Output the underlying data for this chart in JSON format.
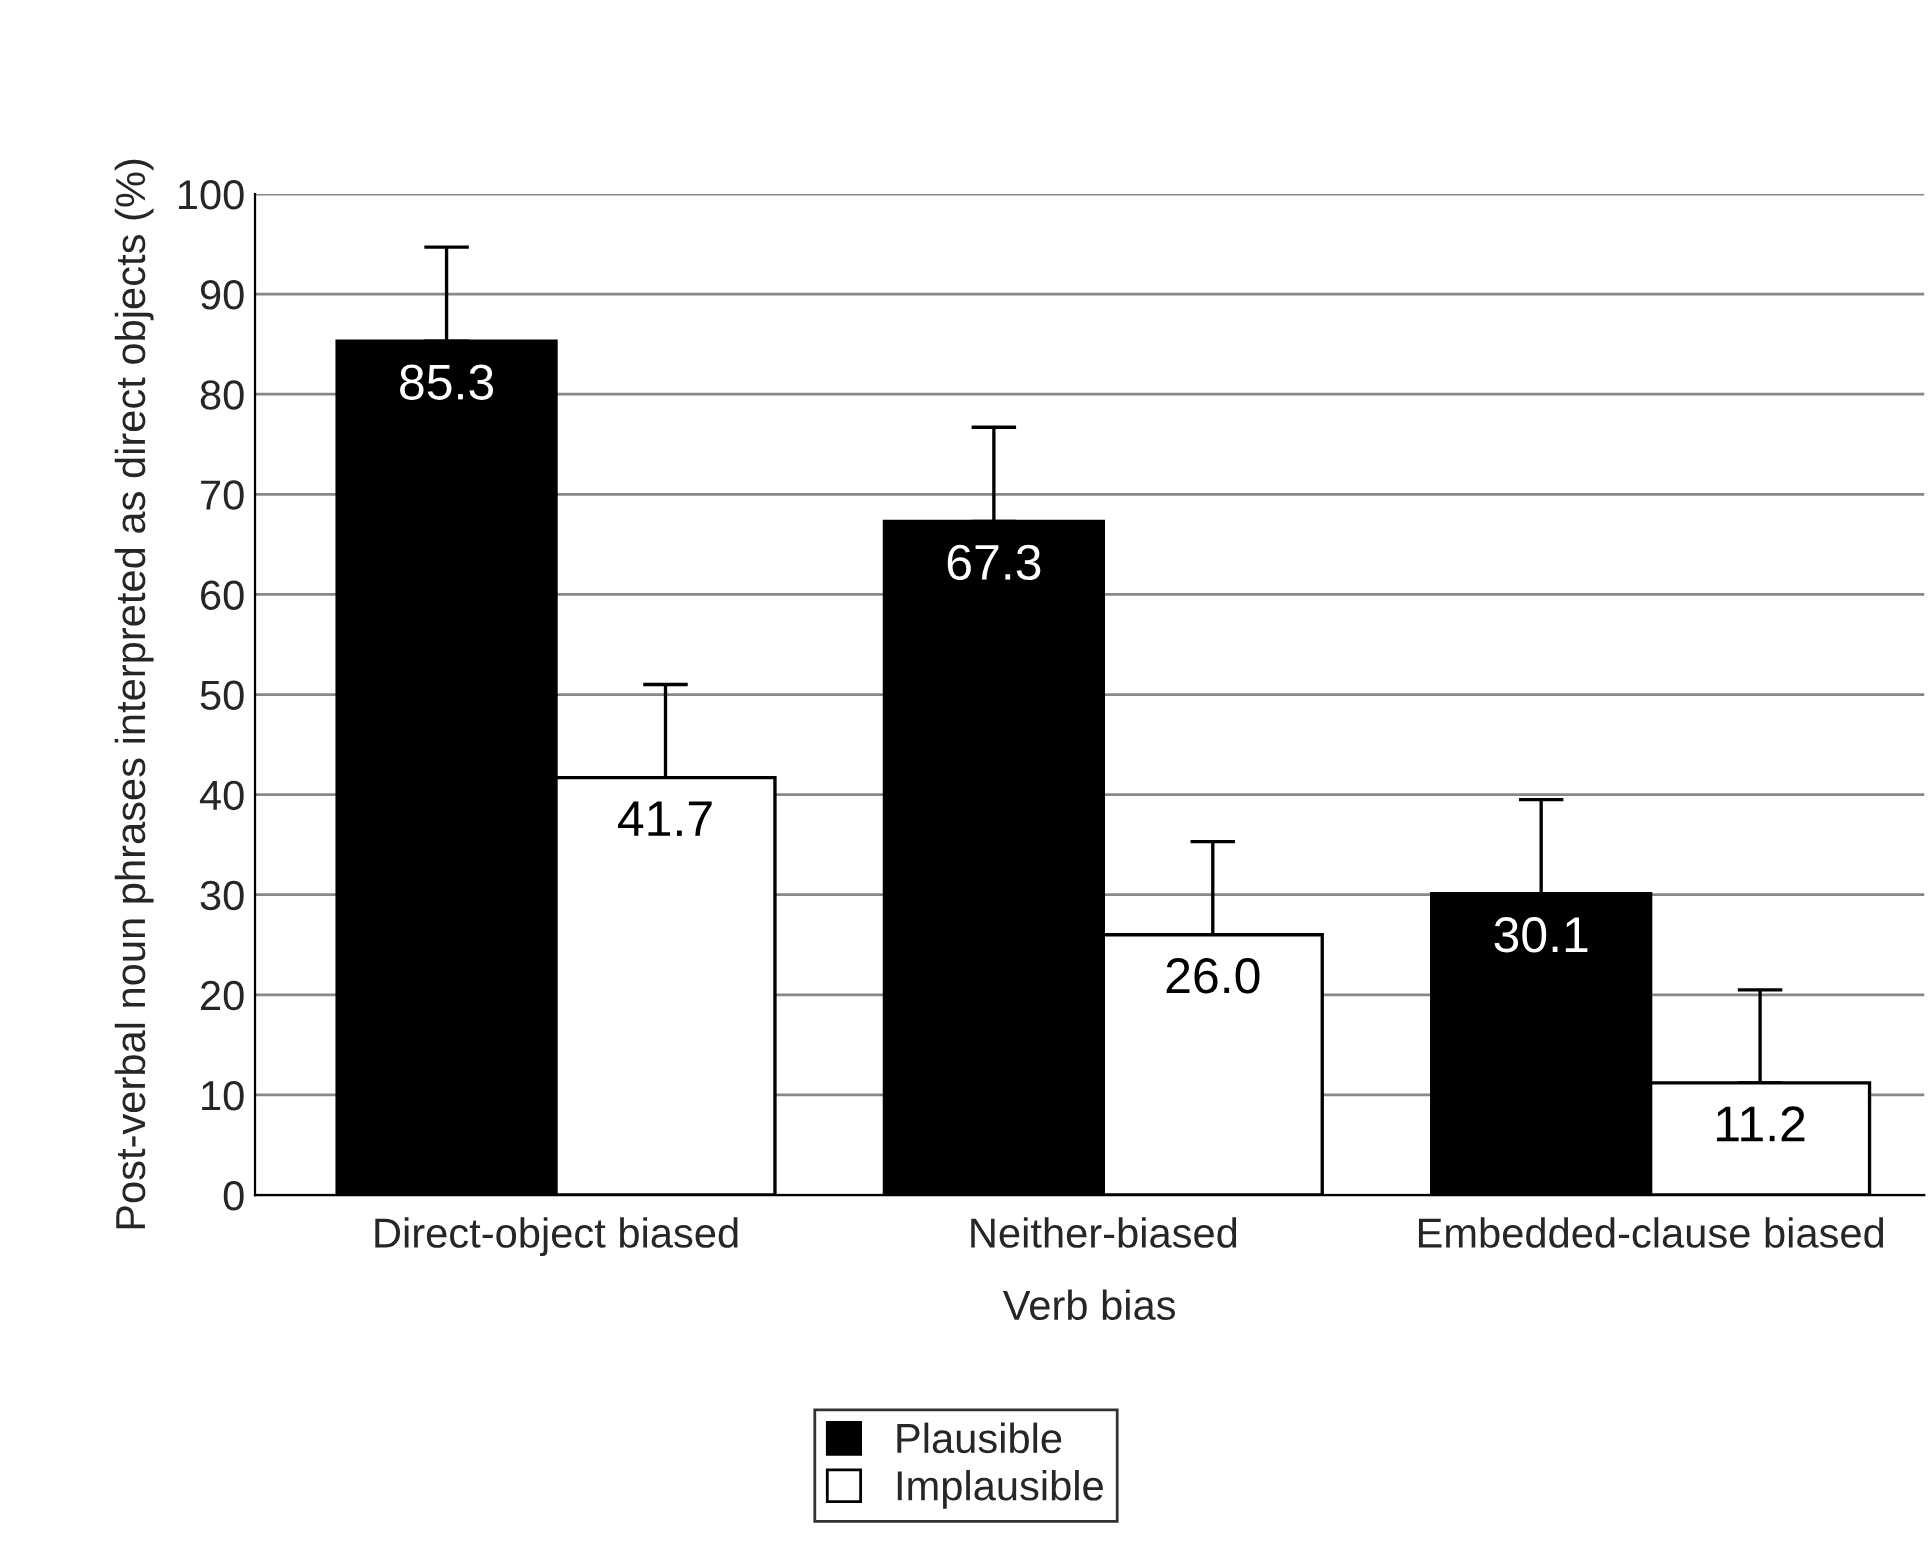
{
  "chart_data": {
    "type": "bar",
    "xlabel": "Verb bias",
    "ylabel": "Post-verbal noun phrases interpreted as direct objects (%)",
    "categories": [
      "Direct-object biased",
      "Neither-biased",
      "Embedded-clause biased"
    ],
    "series": [
      {
        "name": "Plausible",
        "color": "#000000",
        "values": [
          85.3,
          67.3,
          30.1
        ],
        "errors": [
          [
            85.3,
            94.7
          ],
          [
            67.3,
            76.7
          ],
          [
            30.1,
            39.5
          ]
        ]
      },
      {
        "name": "Implausible",
        "color": "#ffffff",
        "values": [
          41.7,
          26.0,
          11.2
        ],
        "errors": [
          [
            41.7,
            51.0
          ],
          [
            26.0,
            35.3
          ],
          [
            11.2,
            20.5
          ]
        ]
      }
    ],
    "value_labels": [
      [
        "85.3",
        "67.3",
        "30.1"
      ],
      [
        "41.7",
        "26.0",
        "11.2"
      ]
    ],
    "ylim": [
      0,
      100
    ],
    "yticks": [
      0,
      10,
      20,
      30,
      40,
      50,
      60,
      70,
      80,
      90,
      100
    ],
    "grid": "y",
    "legend": "bottom"
  }
}
